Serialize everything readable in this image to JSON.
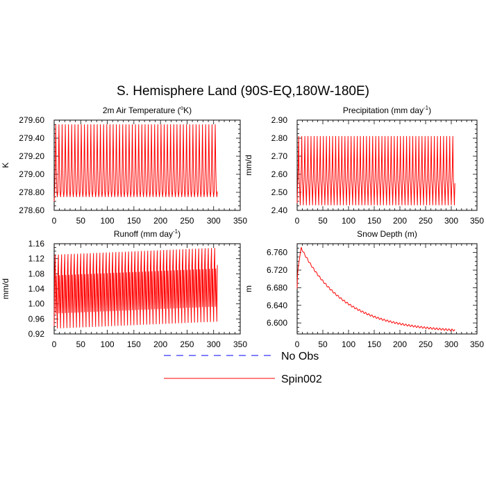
{
  "title": "S. Hemisphere Land (90S-EQ,180W-180E)",
  "legend": {
    "entries": [
      {
        "label": "No Obs",
        "color": "#0000ff",
        "style": "dashed"
      },
      {
        "label": "Spin002",
        "color": "#ff0000",
        "style": "solid"
      }
    ]
  },
  "chart_data": [
    {
      "type": "line",
      "title": "2m Air Temperature (",
      "title_sup": "o",
      "title_post": "K)",
      "ylabel": "K",
      "xlim": [
        0,
        350
      ],
      "xticks": [
        "0",
        "50",
        "100",
        "150",
        "200",
        "250",
        "300",
        "350"
      ],
      "ylim": [
        278.6,
        279.6
      ],
      "yticks": [
        "278.60",
        "278.80",
        "279.00",
        "279.20",
        "279.40",
        "279.60"
      ],
      "series": [
        {
          "name": "Spin002",
          "color": "#ff0000",
          "x_range": [
            0,
            307
          ],
          "period": 6,
          "pattern": [
            278.75,
            278.81,
            279.08,
            279.55,
            279.07,
            278.81
          ],
          "start": 278.7,
          "trend": 0
        }
      ]
    },
    {
      "type": "line",
      "title": "Precipitation (mm day",
      "title_sup": "-1",
      "title_post": ")",
      "ylabel": "mm/d",
      "xlim": [
        0,
        350
      ],
      "xticks": [
        "0",
        "50",
        "100",
        "150",
        "200",
        "250",
        "300",
        "350"
      ],
      "ylim": [
        2.4,
        2.9
      ],
      "yticks": [
        "2.40",
        "2.50",
        "2.60",
        "2.70",
        "2.80",
        "2.90"
      ],
      "series": [
        {
          "name": "Spin002",
          "color": "#ff0000",
          "x_range": [
            0,
            307
          ],
          "period": 6,
          "pattern": [
            2.43,
            2.55,
            2.64,
            2.81,
            2.57,
            2.52
          ],
          "start": 2.44,
          "trend": 0
        }
      ]
    },
    {
      "type": "line",
      "title": "Runoff (mm day",
      "title_sup": "-1",
      "title_post": ")",
      "ylabel": "mm/d",
      "xlim": [
        0,
        350
      ],
      "xticks": [
        "0",
        "50",
        "100",
        "150",
        "200",
        "250",
        "300",
        "350"
      ],
      "ylim": [
        0.92,
        1.16
      ],
      "yticks": [
        "0.92",
        "0.96",
        "1.00",
        "1.04",
        "1.08",
        "1.12",
        "1.16"
      ],
      "series": [
        {
          "name": "Spin002",
          "color": "#ff0000",
          "x_range": [
            0,
            307
          ],
          "period": 6,
          "pattern": [
            0.935,
            1.085,
            1.13,
            0.975,
            1.075,
            1.0
          ],
          "start": 0.94,
          "trend": 6e-05
        }
      ]
    },
    {
      "type": "line",
      "title": "Snow Depth (m)",
      "title_sup": "",
      "title_post": "",
      "ylabel": "m",
      "xlim": [
        0,
        350
      ],
      "xticks": [
        "0",
        "50",
        "100",
        "150",
        "200",
        "250",
        "300",
        "350"
      ],
      "ylim": [
        6.575,
        6.78
      ],
      "yticks": [
        "6.600",
        "6.640",
        "6.680",
        "6.720",
        "6.760"
      ],
      "series": [
        {
          "name": "Spin002",
          "color": "#ff0000",
          "x_range": [
            0,
            307
          ],
          "decay": {
            "start": 6.678,
            "peak_x": 8,
            "peak": 6.77,
            "asymptote": 6.578,
            "tau": 85
          },
          "ripple": 0.002
        }
      ]
    }
  ]
}
